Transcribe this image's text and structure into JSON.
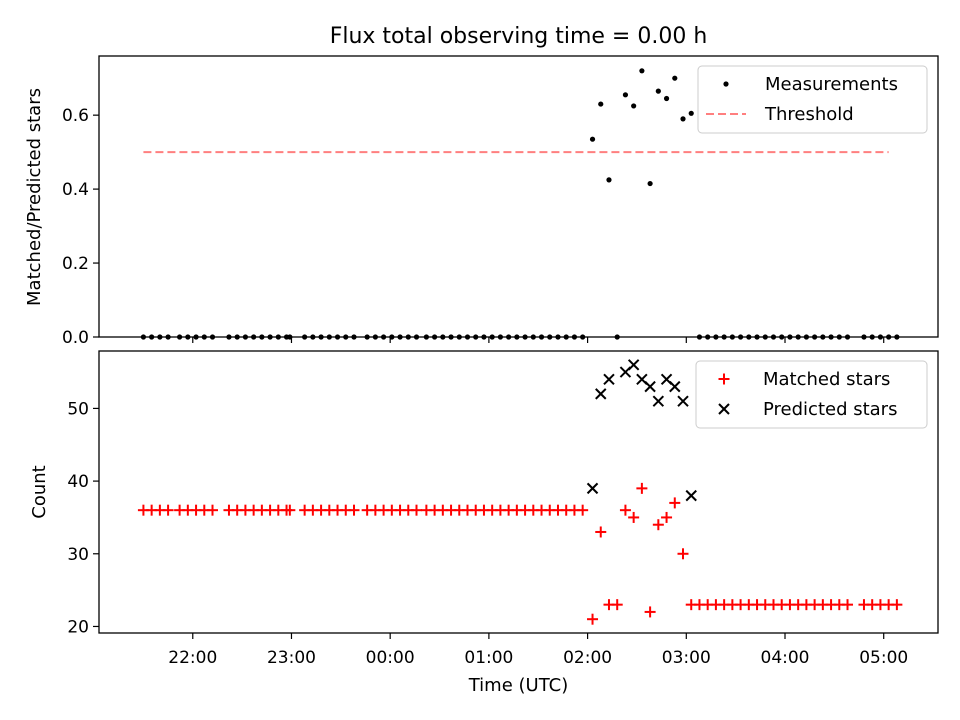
{
  "figure": {
    "title": "Flux total observing time = 0.00 h"
  },
  "chart_data": [
    {
      "type": "scatter",
      "panel": "top",
      "title": "Flux total observing time = 0.00 h",
      "xlabel": "",
      "ylabel": "Matched/Predicted stars",
      "xlim": [
        "21:03",
        "05:33"
      ],
      "ylim": [
        0,
        0.76
      ],
      "yticks": [
        0.0,
        0.2,
        0.4,
        0.6
      ],
      "ytick_labels": [
        "0.0",
        "0.2",
        "0.4",
        "0.6"
      ],
      "xticks": [
        "22:00",
        "23:00",
        "00:00",
        "01:00",
        "02:00",
        "03:00",
        "04:00",
        "05:00"
      ],
      "legend": {
        "placement": "upper right",
        "entries": [
          "Measurements",
          "Threshold"
        ]
      },
      "grid": false,
      "series": [
        {
          "name": "Measurements",
          "marker": "dot",
          "color": "#000000",
          "points": [
            [
              "21:30",
              0
            ],
            [
              "21:35",
              0
            ],
            [
              "21:40",
              0
            ],
            [
              "21:45",
              0
            ],
            [
              "21:52",
              0
            ],
            [
              "21:57",
              0
            ],
            [
              "22:02",
              0
            ],
            [
              "22:07",
              0
            ],
            [
              "22:12",
              0
            ],
            [
              "22:22",
              0
            ],
            [
              "22:27",
              0
            ],
            [
              "22:32",
              0
            ],
            [
              "22:37",
              0
            ],
            [
              "22:42",
              0
            ],
            [
              "22:47",
              0
            ],
            [
              "22:52",
              0
            ],
            [
              "22:57",
              0
            ],
            [
              "22:59",
              0
            ],
            [
              "23:08",
              0
            ],
            [
              "23:13",
              0
            ],
            [
              "23:18",
              0
            ],
            [
              "23:23",
              0
            ],
            [
              "23:28",
              0
            ],
            [
              "23:33",
              0
            ],
            [
              "23:38",
              0
            ],
            [
              "23:46",
              0
            ],
            [
              "23:51",
              0
            ],
            [
              "23:56",
              0
            ],
            [
              "00:01",
              0
            ],
            [
              "00:06",
              0
            ],
            [
              "00:11",
              0
            ],
            [
              "00:16",
              0
            ],
            [
              "00:22",
              0
            ],
            [
              "00:27",
              0
            ],
            [
              "00:32",
              0
            ],
            [
              "00:37",
              0
            ],
            [
              "00:42",
              0
            ],
            [
              "00:47",
              0
            ],
            [
              "00:52",
              0
            ],
            [
              "00:57",
              0
            ],
            [
              "01:02",
              0
            ],
            [
              "01:07",
              0
            ],
            [
              "01:12",
              0
            ],
            [
              "01:17",
              0
            ],
            [
              "01:22",
              0
            ],
            [
              "01:27",
              0
            ],
            [
              "01:32",
              0
            ],
            [
              "01:37",
              0
            ],
            [
              "01:42",
              0
            ],
            [
              "01:47",
              0
            ],
            [
              "01:52",
              0
            ],
            [
              "01:57",
              0
            ],
            [
              "02:03",
              0.535
            ],
            [
              "02:08",
              0.63
            ],
            [
              "02:13",
              0.425
            ],
            [
              "02:18",
              0
            ],
            [
              "02:23",
              0.655
            ],
            [
              "02:28",
              0.625
            ],
            [
              "02:33",
              0.72
            ],
            [
              "02:38",
              0.415
            ],
            [
              "02:43",
              0.665
            ],
            [
              "02:48",
              0.645
            ],
            [
              "02:53",
              0.7
            ],
            [
              "02:58",
              0.59
            ],
            [
              "03:03",
              0.605
            ],
            [
              "03:08",
              0
            ],
            [
              "03:13",
              0
            ],
            [
              "03:18",
              0
            ],
            [
              "03:23",
              0
            ],
            [
              "03:28",
              0
            ],
            [
              "03:33",
              0
            ],
            [
              "03:38",
              0
            ],
            [
              "03:43",
              0
            ],
            [
              "03:48",
              0
            ],
            [
              "03:53",
              0
            ],
            [
              "03:58",
              0
            ],
            [
              "04:03",
              0
            ],
            [
              "04:08",
              0
            ],
            [
              "04:13",
              0
            ],
            [
              "04:18",
              0
            ],
            [
              "04:23",
              0
            ],
            [
              "04:28",
              0
            ],
            [
              "04:33",
              0
            ],
            [
              "04:38",
              0
            ],
            [
              "04:48",
              0
            ],
            [
              "04:53",
              0
            ],
            [
              "04:58",
              0
            ],
            [
              "05:03",
              0
            ],
            [
              "05:08",
              0
            ]
          ]
        },
        {
          "name": "Threshold",
          "style": "dashed-line",
          "color": "#ff7f7f",
          "points": [
            [
              "21:30",
              0.5
            ],
            [
              "05:03",
              0.5
            ]
          ]
        }
      ]
    },
    {
      "type": "scatter",
      "panel": "bottom",
      "xlabel": "Time (UTC)",
      "ylabel": "Count",
      "xlim": [
        "21:03",
        "05:33"
      ],
      "ylim": [
        19.1,
        57.9
      ],
      "yticks": [
        20,
        30,
        40,
        50
      ],
      "ytick_labels": [
        "20",
        "30",
        "40",
        "50"
      ],
      "xticks": [
        "22:00",
        "23:00",
        "00:00",
        "01:00",
        "02:00",
        "03:00",
        "04:00",
        "05:00"
      ],
      "xtick_labels": [
        "22:00",
        "23:00",
        "00:00",
        "01:00",
        "02:00",
        "03:00",
        "04:00",
        "05:00"
      ],
      "legend": {
        "placement": "upper right",
        "entries": [
          "Matched stars",
          "Predicted stars"
        ]
      },
      "grid": false,
      "series": [
        {
          "name": "Matched stars",
          "marker": "plus",
          "color": "#ff0000",
          "points": [
            [
              "21:30",
              36
            ],
            [
              "21:35",
              36
            ],
            [
              "21:40",
              36
            ],
            [
              "21:45",
              36
            ],
            [
              "21:52",
              36
            ],
            [
              "21:57",
              36
            ],
            [
              "22:02",
              36
            ],
            [
              "22:07",
              36
            ],
            [
              "22:12",
              36
            ],
            [
              "22:22",
              36
            ],
            [
              "22:27",
              36
            ],
            [
              "22:32",
              36
            ],
            [
              "22:37",
              36
            ],
            [
              "22:42",
              36
            ],
            [
              "22:47",
              36
            ],
            [
              "22:52",
              36
            ],
            [
              "22:57",
              36
            ],
            [
              "22:59",
              36
            ],
            [
              "23:08",
              36
            ],
            [
              "23:13",
              36
            ],
            [
              "23:18",
              36
            ],
            [
              "23:23",
              36
            ],
            [
              "23:28",
              36
            ],
            [
              "23:33",
              36
            ],
            [
              "23:38",
              36
            ],
            [
              "23:46",
              36
            ],
            [
              "23:51",
              36
            ],
            [
              "23:56",
              36
            ],
            [
              "00:01",
              36
            ],
            [
              "00:06",
              36
            ],
            [
              "00:11",
              36
            ],
            [
              "00:16",
              36
            ],
            [
              "00:22",
              36
            ],
            [
              "00:27",
              36
            ],
            [
              "00:32",
              36
            ],
            [
              "00:37",
              36
            ],
            [
              "00:42",
              36
            ],
            [
              "00:47",
              36
            ],
            [
              "00:52",
              36
            ],
            [
              "00:57",
              36
            ],
            [
              "01:02",
              36
            ],
            [
              "01:07",
              36
            ],
            [
              "01:12",
              36
            ],
            [
              "01:17",
              36
            ],
            [
              "01:22",
              36
            ],
            [
              "01:27",
              36
            ],
            [
              "01:32",
              36
            ],
            [
              "01:37",
              36
            ],
            [
              "01:42",
              36
            ],
            [
              "01:47",
              36
            ],
            [
              "01:52",
              36
            ],
            [
              "01:57",
              36
            ],
            [
              "02:03",
              21
            ],
            [
              "02:08",
              33
            ],
            [
              "02:13",
              23
            ],
            [
              "02:18",
              23
            ],
            [
              "02:23",
              36
            ],
            [
              "02:28",
              35
            ],
            [
              "02:33",
              39
            ],
            [
              "02:38",
              22
            ],
            [
              "02:43",
              34
            ],
            [
              "02:48",
              35
            ],
            [
              "02:53",
              37
            ],
            [
              "02:58",
              30
            ],
            [
              "03:03",
              23
            ],
            [
              "03:08",
              23
            ],
            [
              "03:13",
              23
            ],
            [
              "03:18",
              23
            ],
            [
              "03:23",
              23
            ],
            [
              "03:28",
              23
            ],
            [
              "03:33",
              23
            ],
            [
              "03:38",
              23
            ],
            [
              "03:43",
              23
            ],
            [
              "03:48",
              23
            ],
            [
              "03:53",
              23
            ],
            [
              "03:58",
              23
            ],
            [
              "04:03",
              23
            ],
            [
              "04:08",
              23
            ],
            [
              "04:13",
              23
            ],
            [
              "04:18",
              23
            ],
            [
              "04:23",
              23
            ],
            [
              "04:28",
              23
            ],
            [
              "04:33",
              23
            ],
            [
              "04:38",
              23
            ],
            [
              "04:48",
              23
            ],
            [
              "04:53",
              23
            ],
            [
              "04:58",
              23
            ],
            [
              "05:03",
              23
            ],
            [
              "05:08",
              23
            ]
          ]
        },
        {
          "name": "Predicted stars",
          "marker": "x",
          "color": "#000000",
          "points": [
            [
              "02:03",
              39
            ],
            [
              "02:08",
              52
            ],
            [
              "02:13",
              54
            ],
            [
              "02:23",
              55
            ],
            [
              "02:28",
              56
            ],
            [
              "02:33",
              54
            ],
            [
              "02:38",
              53
            ],
            [
              "02:43",
              51
            ],
            [
              "02:48",
              54
            ],
            [
              "02:53",
              53
            ],
            [
              "02:58",
              51
            ],
            [
              "03:03",
              38
            ]
          ]
        }
      ]
    }
  ]
}
